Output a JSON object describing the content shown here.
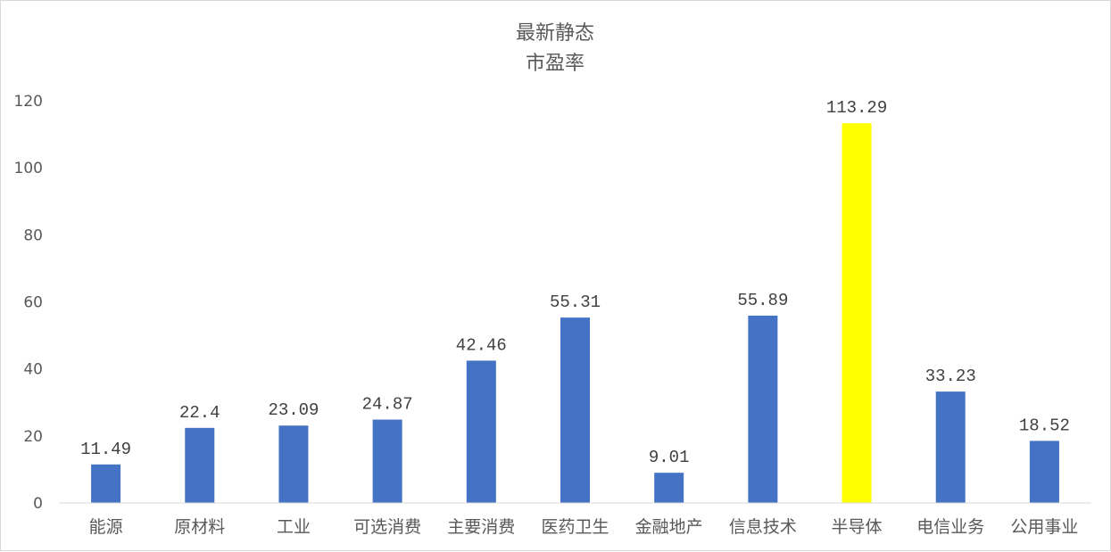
{
  "chart_data": {
    "type": "bar",
    "title": [
      "最新静态",
      "市盈率"
    ],
    "xlabel": "",
    "ylabel": "",
    "ylim": [
      0,
      120
    ],
    "yticks": [
      0,
      20,
      40,
      60,
      80,
      100,
      120
    ],
    "grid": false,
    "legend": "none",
    "categories": [
      "能源",
      "原材料",
      "工业",
      "可选消费",
      "主要消费",
      "医药卫生",
      "金融地产",
      "信息技术",
      "半导体",
      "电信业务",
      "公用事业"
    ],
    "values": [
      11.49,
      22.4,
      23.09,
      24.87,
      42.46,
      55.31,
      9.01,
      55.89,
      113.29,
      33.23,
      18.52
    ],
    "data_labels": [
      "11.49",
      "22.4",
      "23.09",
      "24.87",
      "42.46",
      "55.31",
      "9.01",
      "55.89",
      "113.29",
      "33.23",
      "18.52"
    ],
    "colors": {
      "default": "#4472C4",
      "highlight": "#FFFF00",
      "highlight_category": "半导体",
      "axis": "#d9d9d9"
    }
  }
}
